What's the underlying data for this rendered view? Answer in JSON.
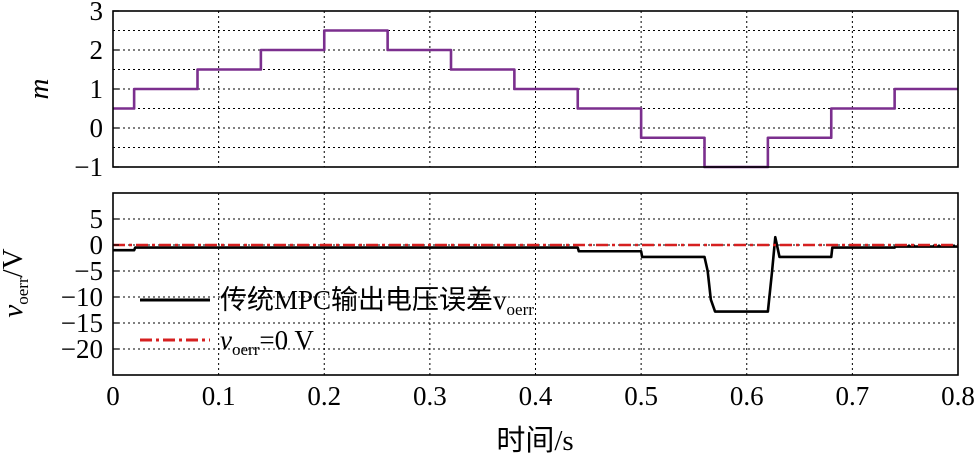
{
  "chart_data": [
    {
      "type": "line",
      "title": "",
      "ylabel": "m",
      "xlim": [
        0,
        0.8
      ],
      "ylim": [
        -1,
        3
      ],
      "yticks": [
        -1,
        0,
        1,
        2,
        3
      ],
      "xticks": [
        0,
        0.1,
        0.2,
        0.3,
        0.4,
        0.5,
        0.6,
        0.7,
        0.8
      ],
      "grid": true,
      "series": [
        {
          "color": "#7B2F8E",
          "style": "step",
          "x": [
            0,
            0.02,
            0.02,
            0.08,
            0.08,
            0.14,
            0.14,
            0.2,
            0.2,
            0.26,
            0.26,
            0.32,
            0.32,
            0.38,
            0.38,
            0.44,
            0.44,
            0.5,
            0.5,
            0.56,
            0.56,
            0.62,
            0.62,
            0.68,
            0.68,
            0.74,
            0.74,
            0.8
          ],
          "y": [
            0.5,
            0.5,
            1.0,
            1.0,
            1.5,
            1.5,
            2.0,
            2.0,
            2.5,
            2.5,
            2.0,
            2.0,
            1.5,
            1.5,
            1.0,
            1.0,
            0.5,
            0.5,
            -0.25,
            -0.25,
            -1.0,
            -1.0,
            -0.25,
            -0.25,
            0.5,
            0.5,
            1.0,
            1.0
          ]
        }
      ]
    },
    {
      "type": "line",
      "title": "",
      "ylabel_main": "v",
      "ylabel_sub": "oerr",
      "ylabel_tail": "/V",
      "xlabel": "时间/s",
      "xlim": [
        0,
        0.8
      ],
      "ylim": [
        -25,
        10
      ],
      "yticks": [
        5,
        0,
        -5,
        -10,
        -15,
        -20
      ],
      "ytick_labels": [
        "5",
        "0",
        "−5",
        "−10",
        "−15",
        "−20"
      ],
      "xticks": [
        0,
        0.1,
        0.2,
        0.3,
        0.4,
        0.5,
        0.6,
        0.7,
        0.8
      ],
      "xtick_labels": [
        "0",
        "0.1",
        "0.2",
        "0.3",
        "0.4",
        "0.5",
        "0.6",
        "0.7",
        "0.8"
      ],
      "grid": true,
      "legend_position": "bottom-left",
      "series": [
        {
          "name_main": "传统MPC输出电压误差v",
          "name_sub": "oerr",
          "color": "#000000",
          "style": "solid",
          "x": [
            0,
            0.02,
            0.021,
            0.44,
            0.441,
            0.5,
            0.501,
            0.56,
            0.563,
            0.566,
            0.57,
            0.62,
            0.624,
            0.627,
            0.631,
            0.68,
            0.681,
            0.74,
            0.741,
            0.8
          ],
          "y": [
            -1.0,
            -1.0,
            -0.5,
            -0.5,
            -1.2,
            -1.2,
            -2.3,
            -2.3,
            -5.0,
            -10.5,
            -12.8,
            -12.8,
            -5.0,
            1.5,
            -2.3,
            -2.3,
            -0.5,
            -0.5,
            -0.3,
            -0.3
          ]
        },
        {
          "name_main": "v",
          "name_sub": "oerr",
          "name_tail": "=0 V",
          "color": "#D62020",
          "style": "dashdot",
          "x": [
            0,
            0.8
          ],
          "y": [
            0,
            0
          ]
        }
      ]
    }
  ]
}
